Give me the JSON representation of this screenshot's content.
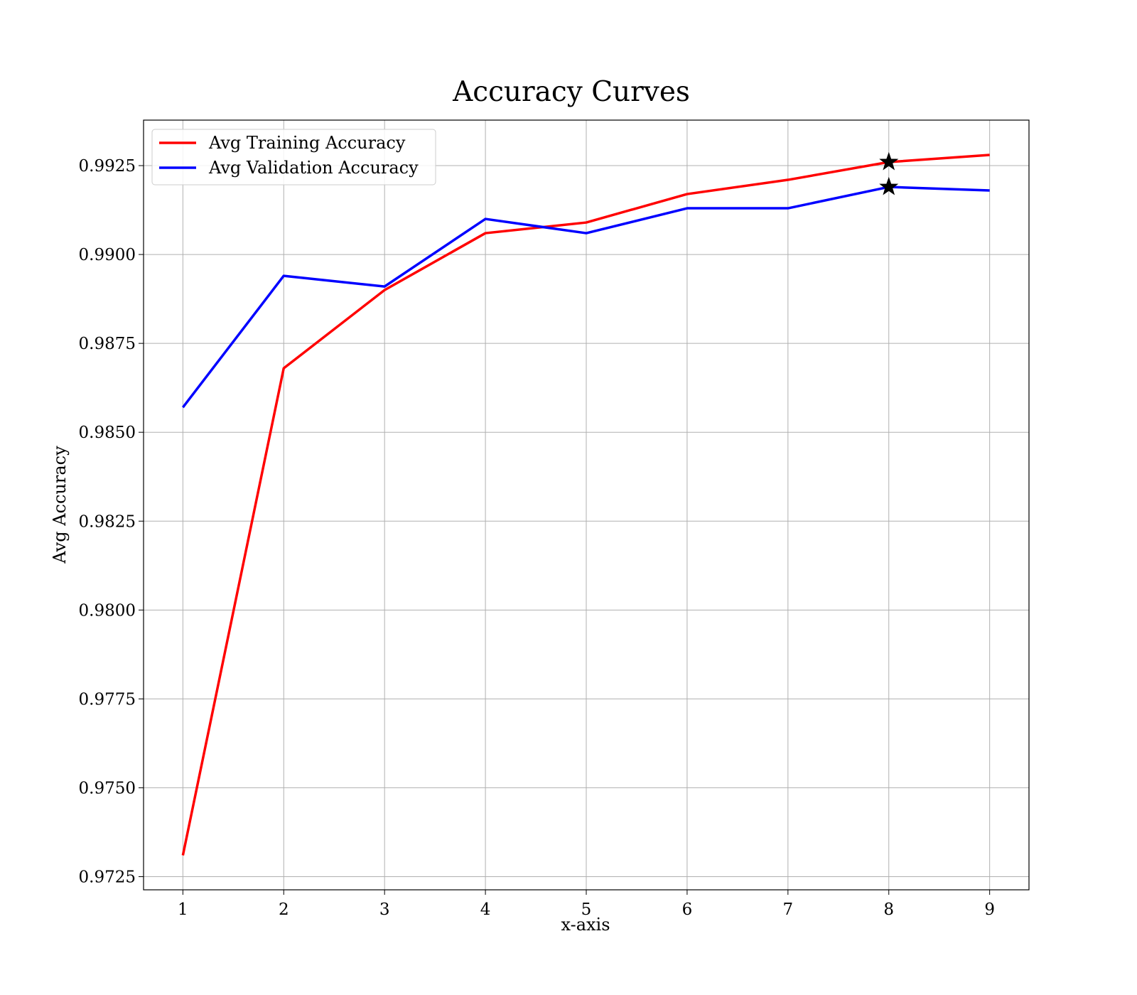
{
  "chart_data": {
    "type": "line",
    "title": "Accuracy Curves",
    "xlabel": "x-axis",
    "ylabel": "Avg Accuracy",
    "x": [
      1,
      2,
      3,
      4,
      5,
      6,
      7,
      8,
      9
    ],
    "xlim": [
      0.61,
      9.39
    ],
    "ylim": [
      0.97213,
      0.99378
    ],
    "xticks": [
      1,
      2,
      3,
      4,
      5,
      6,
      7,
      8,
      9
    ],
    "yticks": [
      0.9725,
      0.975,
      0.9775,
      0.98,
      0.9825,
      0.985,
      0.9875,
      0.99,
      0.9925
    ],
    "ytick_labels": [
      "0.9725",
      "0.9750",
      "0.9775",
      "0.9800",
      "0.9825",
      "0.9850",
      "0.9875",
      "0.9900",
      "0.9925"
    ],
    "grid": true,
    "legend_position": "upper-left",
    "series": [
      {
        "name": "Avg Training Accuracy",
        "color": "#ff0000",
        "values": [
          0.9731,
          0.9868,
          0.989,
          0.9906,
          0.9909,
          0.9917,
          0.9921,
          0.9926,
          0.9928
        ]
      },
      {
        "name": "Avg Validation Accuracy",
        "color": "#0000ff",
        "values": [
          0.9857,
          0.9894,
          0.9891,
          0.991,
          0.9906,
          0.9913,
          0.9913,
          0.9919,
          0.9918
        ]
      }
    ],
    "markers": [
      {
        "series": "Avg Training Accuracy",
        "x": 8,
        "y": 0.9926,
        "shape": "star",
        "color": "#000000"
      },
      {
        "series": "Avg Validation Accuracy",
        "x": 8,
        "y": 0.9919,
        "shape": "star",
        "color": "#000000"
      }
    ]
  }
}
